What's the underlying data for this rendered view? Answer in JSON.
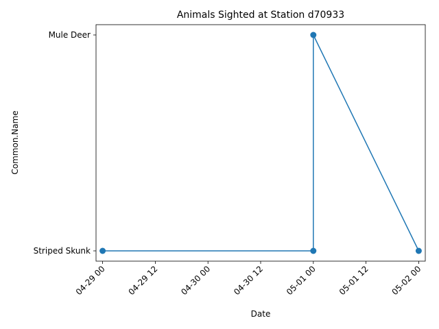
{
  "chart_data": {
    "type": "line",
    "title": "Animals Sighted at Station d70933",
    "xlabel": "Date",
    "ylabel": "Common.Name",
    "x_type": "datetime",
    "categories_y": [
      "Striped Skunk",
      "Mule Deer"
    ],
    "x_ticks": [
      "04-29 00",
      "04-29 12",
      "04-30 00",
      "04-30 12",
      "05-01 00",
      "05-01 12",
      "05-02 00"
    ],
    "xlim": [
      "2023-04-28 22:30",
      "2023-05-02 01:30"
    ],
    "grid": false,
    "legend": false,
    "series": [
      {
        "color": "#1f77b4",
        "marker": "circle",
        "points": [
          {
            "x": "2023-04-29 00:00",
            "y": "Striped Skunk"
          },
          {
            "x": "2023-05-01 00:00",
            "y": "Striped Skunk"
          },
          {
            "x": "2023-05-01 00:00",
            "y": "Mule Deer"
          },
          {
            "x": "2023-05-02 00:00",
            "y": "Striped Skunk"
          }
        ]
      }
    ]
  }
}
